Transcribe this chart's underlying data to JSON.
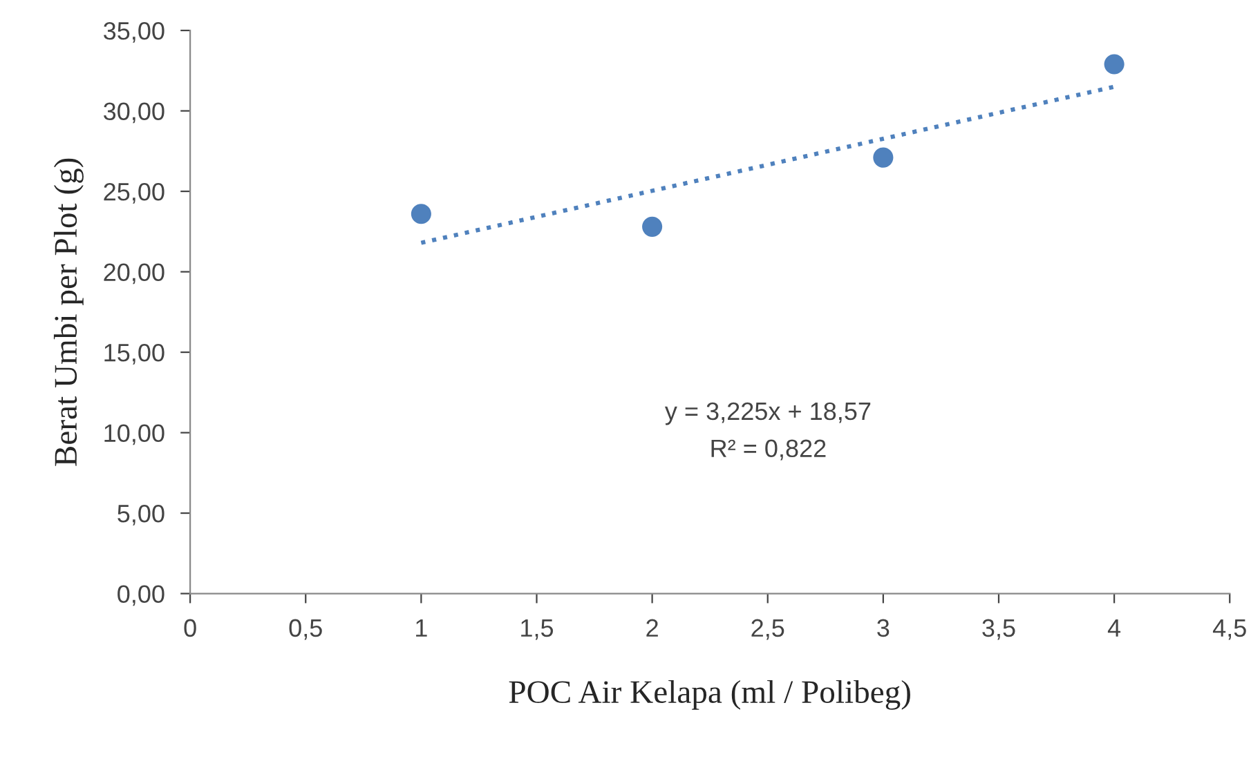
{
  "chart_data": {
    "type": "scatter",
    "xlabel": "POC Air Kelapa (ml / Polibeg)",
    "ylabel": "Berat Umbi per Plot (g)",
    "series": [
      {
        "color": "#4f81bd",
        "x": [
          1,
          2,
          3,
          4
        ],
        "values": [
          23.6,
          22.8,
          27.1,
          32.9
        ],
        "marker": "circle"
      },
      {
        "type": "line",
        "color": "#4f81bd",
        "x": [
          1,
          4
        ],
        "values": [
          21.8,
          31.5
        ],
        "line_style": "dotted",
        "marker": "none"
      }
    ],
    "xlim": [
      0,
      4.5
    ],
    "xticks": [
      0,
      {
        "value": 0.5,
        "label": "0,5"
      },
      1,
      {
        "value": 1.5,
        "label": "1,5"
      },
      2,
      {
        "value": 2.5,
        "label": "2,5"
      },
      3,
      {
        "value": 3.5,
        "label": "3,5"
      },
      4,
      {
        "value": 4.5,
        "label": "4,5"
      }
    ],
    "ylim": [
      0,
      35
    ],
    "yticks": [
      {
        "value": 0,
        "label": "0,00"
      },
      {
        "value": 5,
        "label": "5,00"
      },
      {
        "value": 10,
        "label": "10,00"
      },
      {
        "value": 15,
        "label": "15,00"
      },
      {
        "value": 20,
        "label": "20,00"
      },
      {
        "value": 25,
        "label": "25,00"
      },
      {
        "value": 30,
        "label": "30,00"
      },
      {
        "value": 35,
        "label": "35,00"
      }
    ],
    "annotations": [
      "y = 3,225x + 18,57",
      "R² = 0,822"
    ],
    "grid": false,
    "legend": false
  }
}
